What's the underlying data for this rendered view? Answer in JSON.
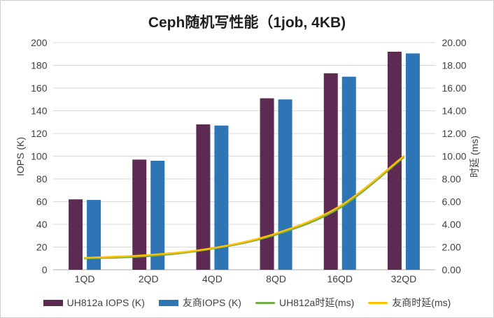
{
  "chart_data": {
    "type": "bar+line combo",
    "title": "Ceph随机写性能（1job, 4KB)",
    "categories": [
      "1QD",
      "2QD",
      "4QD",
      "8QD",
      "16QD",
      "32QD"
    ],
    "series": [
      {
        "name": "UH812a IOPS (K)",
        "type": "bar",
        "axis": "left",
        "color": "#5C2A52",
        "values": [
          62,
          97,
          128,
          151,
          173,
          192
        ]
      },
      {
        "name": "友商IOPS (K)",
        "type": "bar",
        "axis": "left",
        "color": "#2E75B6",
        "values": [
          61.5,
          96,
          127,
          150,
          170,
          190.5
        ]
      },
      {
        "name": "UH812a时延(ms)",
        "type": "line",
        "axis": "right",
        "color": "#70AD47",
        "values": [
          1.0,
          1.2,
          1.85,
          3.1,
          5.45,
          9.9
        ]
      },
      {
        "name": "友商时延(ms)",
        "type": "line",
        "axis": "right",
        "color": "#FFC000",
        "values": [
          1.05,
          1.3,
          1.9,
          3.2,
          5.6,
          10.0
        ]
      }
    ],
    "left_axis": {
      "label": "IOPS (K)",
      "min": 0,
      "max": 200,
      "step": 20,
      "ticks": [
        "200",
        "180",
        "160",
        "140",
        "120",
        "100",
        "80",
        "60",
        "40",
        "20",
        "0"
      ]
    },
    "right_axis": {
      "label": "时延 (ms)",
      "min": 0,
      "max": 20,
      "step": 2,
      "ticks": [
        "20.00",
        "18.00",
        "16.00",
        "14.00",
        "12.00",
        "10.00",
        "8.00",
        "6.00",
        "4.00",
        "2.00",
        "0.00"
      ]
    },
    "grid": "horizontal",
    "legend_position": "bottom",
    "grid_color": "#D9D9D9",
    "axis_line_color": "#ADADAD",
    "text_color": "#404040"
  }
}
